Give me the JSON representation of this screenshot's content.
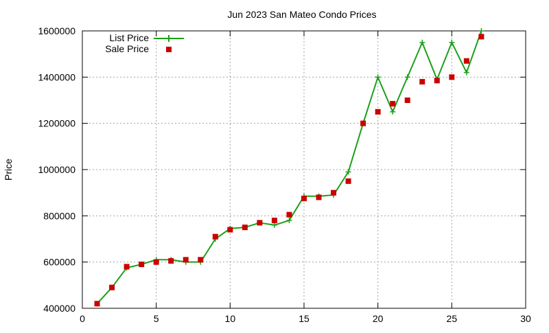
{
  "chart_data": {
    "type": "line",
    "title": "Jun 2023 San Mateo Condo Prices",
    "xlabel": "",
    "ylabel": "Price",
    "xlim": [
      0,
      30
    ],
    "ylim": [
      400000,
      1600000
    ],
    "xticks": [
      0,
      5,
      10,
      15,
      20,
      25,
      30
    ],
    "yticks": [
      400000,
      600000,
      800000,
      1000000,
      1200000,
      1400000,
      1600000
    ],
    "xtick_labels": [
      "0",
      "5",
      "10",
      "15",
      "20",
      "25",
      "30"
    ],
    "ytick_labels": [
      "400000",
      "600000",
      "800000",
      "1000000",
      "1200000",
      "1400000",
      "1600000"
    ],
    "grid": true,
    "legend_position": "top-left",
    "series": [
      {
        "name": "List Price",
        "style": "line-plus",
        "color": "#1aa01a",
        "x": [
          1,
          2,
          3,
          4,
          5,
          6,
          7,
          8,
          9,
          10,
          11,
          12,
          13,
          14,
          15,
          16,
          17,
          18,
          19,
          20,
          21,
          22,
          23,
          24,
          25,
          26,
          27
        ],
        "y": [
          420000,
          490000,
          575000,
          590000,
          610000,
          610000,
          600000,
          600000,
          700000,
          745000,
          750000,
          770000,
          760000,
          780000,
          885000,
          885000,
          890000,
          990000,
          1200000,
          1400000,
          1250000,
          1400000,
          1550000,
          1390000,
          1550000,
          1420000,
          1600000
        ]
      },
      {
        "name": "Sale Price",
        "style": "square-marker",
        "color": "#cc0000",
        "x": [
          1,
          2,
          3,
          4,
          5,
          6,
          7,
          8,
          9,
          10,
          11,
          12,
          13,
          14,
          15,
          16,
          17,
          18,
          19,
          20,
          21,
          22,
          23,
          24,
          25,
          26,
          27
        ],
        "y": [
          420000,
          490000,
          580000,
          590000,
          600000,
          605000,
          610000,
          610000,
          710000,
          740000,
          750000,
          770000,
          780000,
          805000,
          875000,
          880000,
          900000,
          950000,
          1200000,
          1250000,
          1285000,
          1300000,
          1380000,
          1385000,
          1400000,
          1470000,
          1575000
        ]
      }
    ]
  }
}
